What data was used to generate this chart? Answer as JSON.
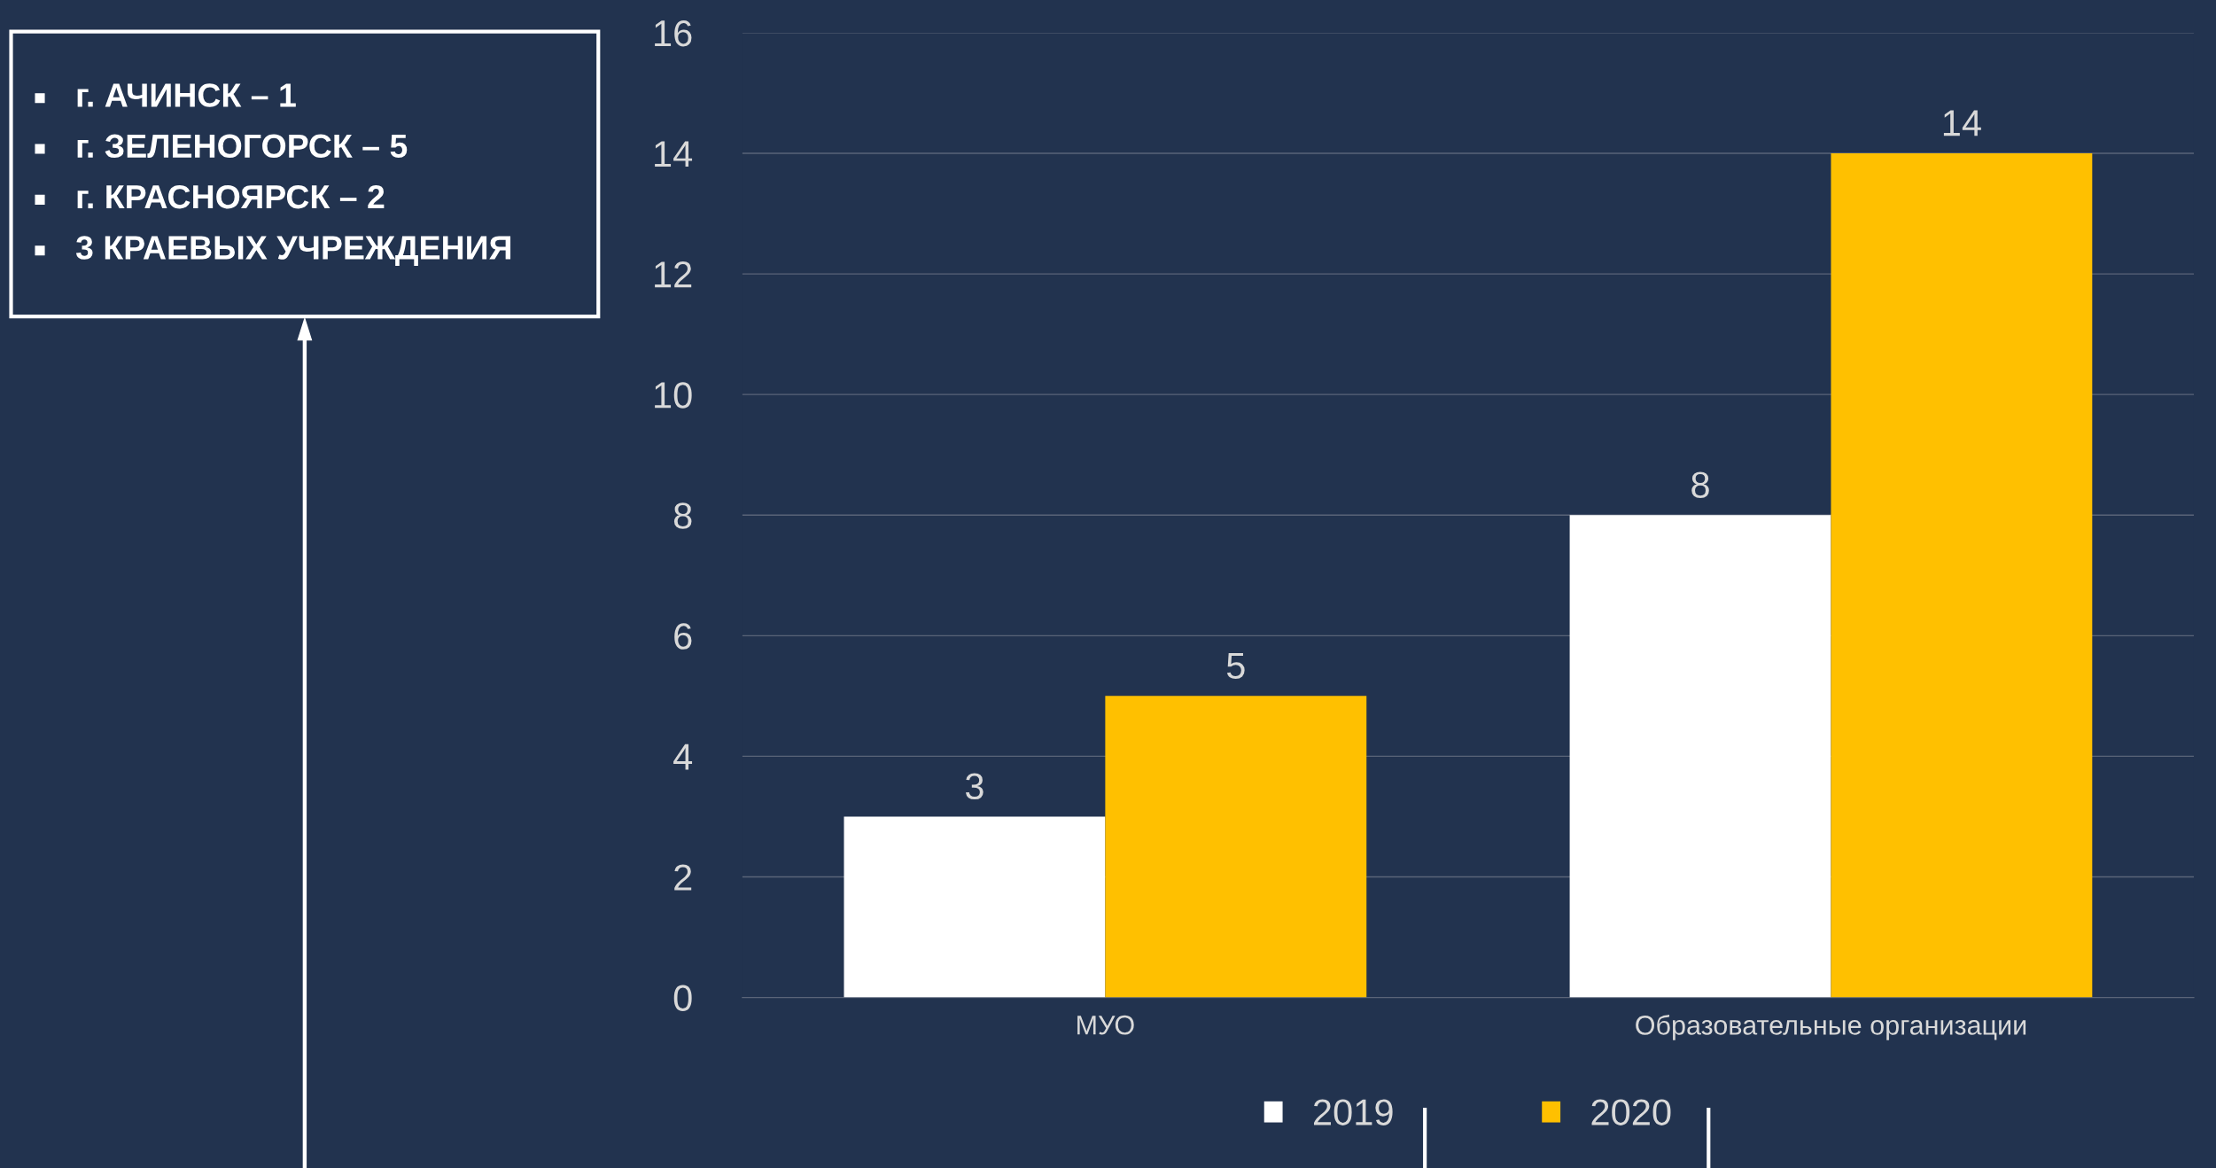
{
  "chart_data": {
    "type": "bar",
    "categories": [
      "МУО",
      "Образовательные организации"
    ],
    "series": [
      {
        "name": "2019",
        "color": "#ffffff",
        "values": [
          3,
          8
        ]
      },
      {
        "name": "2020",
        "color": "#ffc000",
        "values": [
          5,
          14
        ]
      }
    ],
    "ylim": [
      0,
      16
    ],
    "yticks": [
      0,
      2,
      4,
      6,
      8,
      10,
      12,
      14,
      16
    ],
    "grid": "y",
    "legend": "bottom",
    "data_labels": true,
    "annotations": [
      "г. АЧИНСК – 1",
      "г. ЗЕЛЕНОГОРСК – 5",
      "г. КРАСНОЯРСК – 2",
      "3 КРАЕВЫХ УЧРЕЖДЕНИЯ"
    ]
  }
}
